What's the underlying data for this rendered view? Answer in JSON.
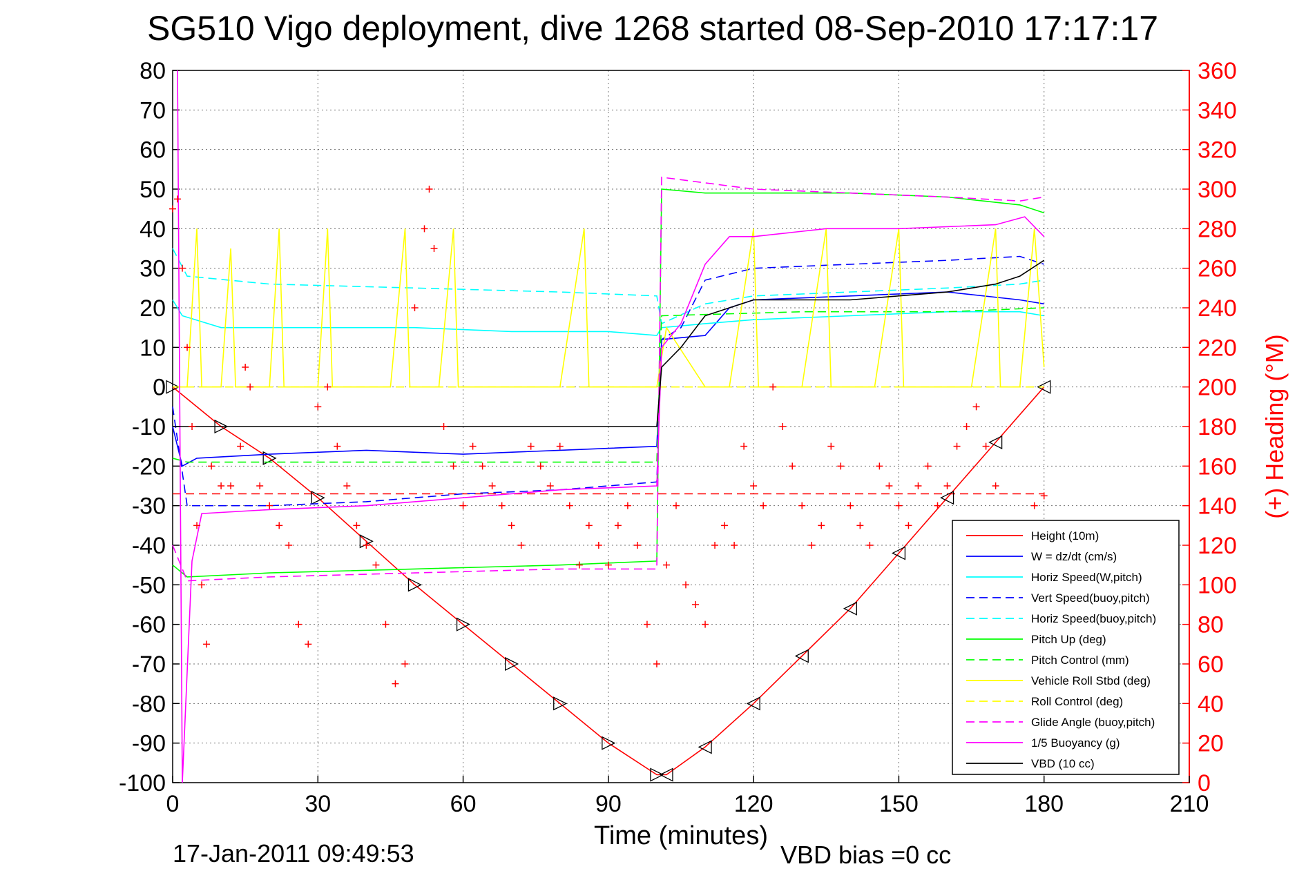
{
  "chart_data": {
    "type": "line",
    "title": "SG510 Vigo deployment, dive 1268 started 08-Sep-2010 17:17:17",
    "xlabel": "Time (minutes)",
    "ylabel": "",
    "y2label": "(+) Heading (°M)",
    "footer_left": "17-Jan-2011 09:49:53",
    "footer_right": "VBD bias =0 cc",
    "xlim": [
      0,
      210
    ],
    "ylim": [
      -100,
      80
    ],
    "y2lim": [
      0,
      360
    ],
    "x_ticks": [
      "0",
      "30",
      "60",
      "90",
      "120",
      "150",
      "180",
      "210"
    ],
    "y_ticks": [
      "80",
      "70",
      "60",
      "50",
      "40",
      "30",
      "20",
      "10",
      "0",
      "-10",
      "-20",
      "-30",
      "-40",
      "-50",
      "-60",
      "-70",
      "-80",
      "-90",
      "-100"
    ],
    "y2_ticks": [
      "360",
      "340",
      "320",
      "300",
      "280",
      "260",
      "240",
      "220",
      "200",
      "180",
      "160",
      "140",
      "120",
      "100",
      "80",
      "60",
      "40",
      "20",
      "0"
    ],
    "grid": true,
    "legend_position": "bottom-right",
    "series": [
      {
        "name": "Height (10m)",
        "color": "#ff0000",
        "dash": "solid",
        "marker": "triangles",
        "points": [
          [
            0,
            0
          ],
          [
            10,
            -10
          ],
          [
            20,
            -18
          ],
          [
            30,
            -28
          ],
          [
            40,
            -39
          ],
          [
            50,
            -50
          ],
          [
            60,
            -60
          ],
          [
            70,
            -70
          ],
          [
            80,
            -80
          ],
          [
            90,
            -90
          ],
          [
            100,
            -98
          ],
          [
            102,
            -98
          ],
          [
            110,
            -91
          ],
          [
            120,
            -80
          ],
          [
            130,
            -68
          ],
          [
            140,
            -56
          ],
          [
            150,
            -42
          ],
          [
            160,
            -28
          ],
          [
            170,
            -14
          ],
          [
            180,
            0
          ]
        ]
      },
      {
        "name": "W = dz/dt (cm/s)",
        "color": "#0000ff",
        "dash": "solid",
        "points": [
          [
            0,
            -10
          ],
          [
            2,
            -20
          ],
          [
            5,
            -18
          ],
          [
            20,
            -17
          ],
          [
            40,
            -16
          ],
          [
            60,
            -17
          ],
          [
            80,
            -16
          ],
          [
            100,
            -15
          ],
          [
            101,
            12
          ],
          [
            110,
            13
          ],
          [
            115,
            20
          ],
          [
            120,
            22
          ],
          [
            140,
            23
          ],
          [
            160,
            24
          ],
          [
            175,
            22
          ],
          [
            180,
            21
          ]
        ]
      },
      {
        "name": "Horiz Speed(W,pitch)",
        "color": "#00ffff",
        "dash": "solid",
        "points": [
          [
            0,
            22
          ],
          [
            2,
            18
          ],
          [
            10,
            15
          ],
          [
            30,
            15
          ],
          [
            50,
            15
          ],
          [
            70,
            14
          ],
          [
            90,
            14
          ],
          [
            100,
            13
          ],
          [
            101,
            15
          ],
          [
            110,
            16
          ],
          [
            120,
            17
          ],
          [
            140,
            18
          ],
          [
            160,
            19
          ],
          [
            175,
            19
          ],
          [
            180,
            18
          ]
        ]
      },
      {
        "name": "Vert Speed(buoy,pitch)",
        "color": "#0000ff",
        "dash": "dashed",
        "points": [
          [
            0,
            -5
          ],
          [
            3,
            -30
          ],
          [
            20,
            -30
          ],
          [
            40,
            -29
          ],
          [
            60,
            -27
          ],
          [
            80,
            -26
          ],
          [
            100,
            -24
          ],
          [
            101,
            12
          ],
          [
            105,
            15
          ],
          [
            110,
            27
          ],
          [
            120,
            30
          ],
          [
            140,
            31
          ],
          [
            160,
            32
          ],
          [
            175,
            33
          ],
          [
            180,
            31
          ]
        ]
      },
      {
        "name": "Horiz Speed(buoy,pitch)",
        "color": "#00ffff",
        "dash": "dashed",
        "points": [
          [
            0,
            35
          ],
          [
            3,
            28
          ],
          [
            20,
            26
          ],
          [
            50,
            25
          ],
          [
            80,
            24
          ],
          [
            100,
            23
          ],
          [
            101,
            16
          ],
          [
            110,
            21
          ],
          [
            120,
            23
          ],
          [
            140,
            24
          ],
          [
            160,
            25
          ],
          [
            175,
            26
          ],
          [
            180,
            27
          ]
        ]
      },
      {
        "name": "Pitch Up (deg)",
        "color": "#00ff00",
        "dash": "solid",
        "points": [
          [
            0,
            -45
          ],
          [
            3,
            -48
          ],
          [
            20,
            -47
          ],
          [
            50,
            -46
          ],
          [
            80,
            -45
          ],
          [
            100,
            -44
          ],
          [
            101,
            50
          ],
          [
            110,
            49
          ],
          [
            120,
            49
          ],
          [
            140,
            49
          ],
          [
            160,
            48
          ],
          [
            175,
            46
          ],
          [
            180,
            44
          ]
        ]
      },
      {
        "name": "Pitch Control (mm)",
        "color": "#00ff00",
        "dash": "dashed",
        "points": [
          [
            0,
            -18
          ],
          [
            3,
            -19
          ],
          [
            30,
            -19
          ],
          [
            60,
            -19
          ],
          [
            90,
            -19
          ],
          [
            100,
            -19
          ],
          [
            101,
            18
          ],
          [
            130,
            19
          ],
          [
            160,
            19
          ],
          [
            180,
            20
          ]
        ]
      },
      {
        "name": "Vehicle Roll Stbd (deg)",
        "color": "#ffff00",
        "dash": "solid",
        "points": [
          [
            0,
            0
          ],
          [
            3,
            0
          ],
          [
            5,
            40
          ],
          [
            6,
            0
          ],
          [
            10,
            0
          ],
          [
            12,
            35
          ],
          [
            13,
            0
          ],
          [
            20,
            0
          ],
          [
            22,
            40
          ],
          [
            23,
            0
          ],
          [
            30,
            0
          ],
          [
            32,
            40
          ],
          [
            33,
            0
          ],
          [
            40,
            0
          ],
          [
            45,
            0
          ],
          [
            48,
            40
          ],
          [
            49,
            0
          ],
          [
            55,
            0
          ],
          [
            58,
            40
          ],
          [
            59,
            0
          ],
          [
            70,
            0
          ],
          [
            80,
            0
          ],
          [
            85,
            40
          ],
          [
            86,
            0
          ],
          [
            100,
            0
          ],
          [
            102,
            15
          ],
          [
            110,
            0
          ],
          [
            115,
            0
          ],
          [
            120,
            40
          ],
          [
            121,
            0
          ],
          [
            130,
            0
          ],
          [
            135,
            40
          ],
          [
            136,
            0
          ],
          [
            145,
            0
          ],
          [
            150,
            40
          ],
          [
            151,
            0
          ],
          [
            165,
            0
          ],
          [
            170,
            40
          ],
          [
            171,
            0
          ],
          [
            175,
            0
          ],
          [
            178,
            40
          ],
          [
            180,
            5
          ]
        ]
      },
      {
        "name": "Roll Control (deg)",
        "color": "#ffff00",
        "dash": "dashed",
        "points": [
          [
            0,
            0
          ],
          [
            100,
            0
          ],
          [
            101,
            0
          ],
          [
            180,
            0
          ]
        ]
      },
      {
        "name": "Glide Angle (buoy,pitch)",
        "color": "#ff00ff",
        "dash": "dashed",
        "points": [
          [
            0,
            -40
          ],
          [
            3,
            -49
          ],
          [
            20,
            -48
          ],
          [
            50,
            -47
          ],
          [
            80,
            -46
          ],
          [
            100,
            -46
          ],
          [
            101,
            53
          ],
          [
            120,
            50
          ],
          [
            140,
            49
          ],
          [
            160,
            48
          ],
          [
            175,
            47
          ],
          [
            180,
            48
          ]
        ]
      },
      {
        "name": "1/5 Buoyancy (g)",
        "color": "#ff00ff",
        "dash": "solid",
        "points": [
          [
            1,
            80
          ],
          [
            2,
            -100
          ],
          [
            4,
            -44
          ],
          [
            6,
            -32
          ],
          [
            20,
            -31
          ],
          [
            40,
            -30
          ],
          [
            60,
            -28
          ],
          [
            80,
            -26
          ],
          [
            100,
            -25
          ],
          [
            101,
            10
          ],
          [
            105,
            16
          ],
          [
            110,
            31
          ],
          [
            115,
            38
          ],
          [
            120,
            38
          ],
          [
            135,
            40
          ],
          [
            150,
            40
          ],
          [
            170,
            41
          ],
          [
            176,
            43
          ],
          [
            180,
            38
          ]
        ]
      },
      {
        "name": "VBD (10 cc)",
        "color": "#000000",
        "dash": "solid",
        "points": [
          [
            0,
            -10
          ],
          [
            100,
            -10
          ],
          [
            101,
            5
          ],
          [
            105,
            10
          ],
          [
            110,
            18
          ],
          [
            115,
            20
          ],
          [
            120,
            22
          ],
          [
            140,
            22
          ],
          [
            160,
            24
          ],
          [
            170,
            26
          ],
          [
            175,
            28
          ],
          [
            180,
            32
          ]
        ]
      }
    ],
    "extra_lines": [
      {
        "color": "#ff0000",
        "dash": "dashed",
        "y": -27,
        "x_range": [
          0,
          180
        ]
      }
    ],
    "heading_series": {
      "name": "Heading",
      "color": "#ff0000",
      "marker": "+",
      "axis": "right",
      "points": [
        [
          0,
          290
        ],
        [
          1,
          295
        ],
        [
          2,
          260
        ],
        [
          3,
          220
        ],
        [
          4,
          180
        ],
        [
          5,
          130
        ],
        [
          6,
          100
        ],
        [
          7,
          70
        ],
        [
          8,
          160
        ],
        [
          10,
          150
        ],
        [
          12,
          150
        ],
        [
          14,
          170
        ],
        [
          15,
          210
        ],
        [
          16,
          200
        ],
        [
          18,
          150
        ],
        [
          20,
          140
        ],
        [
          22,
          130
        ],
        [
          24,
          120
        ],
        [
          26,
          80
        ],
        [
          28,
          70
        ],
        [
          30,
          190
        ],
        [
          32,
          200
        ],
        [
          34,
          170
        ],
        [
          36,
          150
        ],
        [
          38,
          130
        ],
        [
          40,
          120
        ],
        [
          42,
          110
        ],
        [
          44,
          80
        ],
        [
          46,
          50
        ],
        [
          48,
          60
        ],
        [
          50,
          240
        ],
        [
          52,
          280
        ],
        [
          53,
          300
        ],
        [
          54,
          270
        ],
        [
          56,
          180
        ],
        [
          58,
          160
        ],
        [
          60,
          140
        ],
        [
          62,
          170
        ],
        [
          64,
          160
        ],
        [
          66,
          150
        ],
        [
          68,
          140
        ],
        [
          70,
          130
        ],
        [
          72,
          120
        ],
        [
          74,
          170
        ],
        [
          76,
          160
        ],
        [
          78,
          150
        ],
        [
          80,
          170
        ],
        [
          82,
          140
        ],
        [
          84,
          110
        ],
        [
          86,
          130
        ],
        [
          88,
          120
        ],
        [
          90,
          110
        ],
        [
          92,
          130
        ],
        [
          94,
          140
        ],
        [
          96,
          120
        ],
        [
          98,
          80
        ],
        [
          100,
          60
        ],
        [
          102,
          110
        ],
        [
          104,
          140
        ],
        [
          106,
          100
        ],
        [
          108,
          90
        ],
        [
          110,
          80
        ],
        [
          112,
          120
        ],
        [
          114,
          130
        ],
        [
          116,
          120
        ],
        [
          118,
          170
        ],
        [
          120,
          150
        ],
        [
          122,
          140
        ],
        [
          124,
          200
        ],
        [
          126,
          180
        ],
        [
          128,
          160
        ],
        [
          130,
          140
        ],
        [
          132,
          120
        ],
        [
          134,
          130
        ],
        [
          136,
          170
        ],
        [
          138,
          160
        ],
        [
          140,
          140
        ],
        [
          142,
          130
        ],
        [
          144,
          120
        ],
        [
          146,
          160
        ],
        [
          148,
          150
        ],
        [
          150,
          140
        ],
        [
          152,
          130
        ],
        [
          154,
          150
        ],
        [
          156,
          160
        ],
        [
          158,
          140
        ],
        [
          160,
          150
        ],
        [
          162,
          170
        ],
        [
          164,
          180
        ],
        [
          166,
          190
        ],
        [
          168,
          170
        ],
        [
          170,
          150
        ],
        [
          172,
          130
        ],
        [
          174,
          120
        ],
        [
          176,
          130
        ],
        [
          178,
          140
        ],
        [
          180,
          145
        ]
      ]
    }
  }
}
